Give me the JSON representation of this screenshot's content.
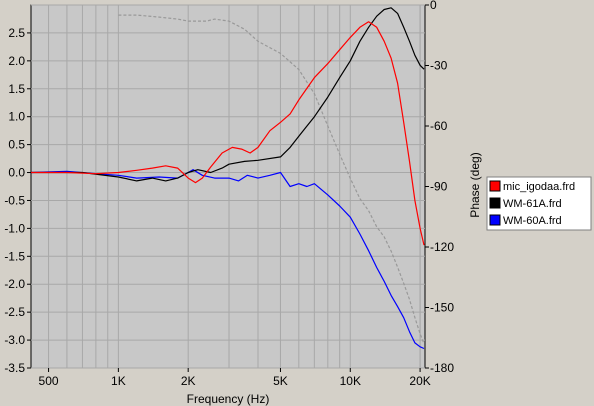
{
  "chart_data": {
    "type": "line",
    "xlabel": "Frequency (Hz)",
    "ylabel_right": "Phase (deg)",
    "xscale": "log",
    "xlim": [
      420,
      21000
    ],
    "ylim_left": [
      -3.5,
      3.0
    ],
    "ylim_right": [
      -180,
      0
    ],
    "grid": true,
    "legend_position": "right",
    "x_tick_labels": [
      {
        "value": 500,
        "label": "500"
      },
      {
        "value": 1000,
        "label": "1K"
      },
      {
        "value": 2000,
        "label": "2K"
      },
      {
        "value": 5000,
        "label": "5K"
      },
      {
        "value": 10000,
        "label": "10K"
      },
      {
        "value": 20000,
        "label": "20K"
      }
    ],
    "y_left_ticks": [
      "2.5",
      "2.0",
      "1.5",
      "1.0",
      "0.5",
      "0.0",
      "-0.5",
      "-1.0",
      "-1.5",
      "-2.0",
      "-2.5",
      "-3.0",
      "-3.5"
    ],
    "y_right_ticks": [
      "0",
      "-30",
      "-60",
      "-90",
      "-120",
      "-150",
      "-180"
    ],
    "series": [
      {
        "name": "mic_igodaa.frd",
        "color": "#ff0000",
        "axis": "left",
        "points": [
          [
            420,
            0.0
          ],
          [
            600,
            0.0
          ],
          [
            800,
            -0.02
          ],
          [
            1000,
            0.0
          ],
          [
            1200,
            0.04
          ],
          [
            1400,
            0.08
          ],
          [
            1600,
            0.12
          ],
          [
            1800,
            0.08
          ],
          [
            2000,
            -0.1
          ],
          [
            2150,
            -0.18
          ],
          [
            2300,
            -0.1
          ],
          [
            2500,
            0.1
          ],
          [
            2800,
            0.35
          ],
          [
            3100,
            0.45
          ],
          [
            3400,
            0.42
          ],
          [
            3700,
            0.35
          ],
          [
            4000,
            0.45
          ],
          [
            4500,
            0.75
          ],
          [
            5000,
            0.9
          ],
          [
            5500,
            1.05
          ],
          [
            6000,
            1.3
          ],
          [
            7000,
            1.7
          ],
          [
            8000,
            1.95
          ],
          [
            9000,
            2.2
          ],
          [
            10000,
            2.42
          ],
          [
            11000,
            2.6
          ],
          [
            12000,
            2.7
          ],
          [
            13000,
            2.6
          ],
          [
            14000,
            2.35
          ],
          [
            15000,
            2.05
          ],
          [
            16000,
            1.6
          ],
          [
            17000,
            0.9
          ],
          [
            18000,
            0.2
          ],
          [
            19000,
            -0.5
          ],
          [
            20000,
            -1.0
          ],
          [
            20800,
            -1.3
          ]
        ]
      },
      {
        "name": "WM-61A.frd",
        "color": "#000000",
        "axis": "left",
        "points": [
          [
            420,
            0.0
          ],
          [
            700,
            0.0
          ],
          [
            1000,
            -0.08
          ],
          [
            1200,
            -0.15
          ],
          [
            1400,
            -0.1
          ],
          [
            1600,
            -0.15
          ],
          [
            1800,
            -0.1
          ],
          [
            2000,
            0.0
          ],
          [
            2200,
            0.05
          ],
          [
            2500,
            0.0
          ],
          [
            2800,
            0.08
          ],
          [
            3000,
            0.15
          ],
          [
            3500,
            0.2
          ],
          [
            4000,
            0.22
          ],
          [
            5000,
            0.28
          ],
          [
            5500,
            0.45
          ],
          [
            6000,
            0.65
          ],
          [
            7000,
            1.0
          ],
          [
            8000,
            1.35
          ],
          [
            9000,
            1.7
          ],
          [
            10000,
            2.0
          ],
          [
            11000,
            2.35
          ],
          [
            12000,
            2.6
          ],
          [
            13000,
            2.8
          ],
          [
            14000,
            2.92
          ],
          [
            15000,
            2.95
          ],
          [
            16000,
            2.85
          ],
          [
            17000,
            2.6
          ],
          [
            18000,
            2.35
          ],
          [
            19000,
            2.1
          ],
          [
            20000,
            1.92
          ],
          [
            20800,
            1.85
          ]
        ]
      },
      {
        "name": "WM-60A.frd",
        "color": "#0000ff",
        "axis": "left",
        "points": [
          [
            420,
            0.0
          ],
          [
            600,
            0.02
          ],
          [
            800,
            -0.02
          ],
          [
            1000,
            -0.05
          ],
          [
            1200,
            -0.1
          ],
          [
            1500,
            -0.08
          ],
          [
            1800,
            -0.1
          ],
          [
            2000,
            0.0
          ],
          [
            2100,
            0.05
          ],
          [
            2300,
            -0.05
          ],
          [
            2600,
            -0.1
          ],
          [
            3000,
            -0.1
          ],
          [
            3300,
            -0.15
          ],
          [
            3600,
            -0.05
          ],
          [
            4000,
            -0.1
          ],
          [
            4500,
            -0.05
          ],
          [
            5000,
            0.0
          ],
          [
            5500,
            -0.25
          ],
          [
            6000,
            -0.2
          ],
          [
            6500,
            -0.25
          ],
          [
            7000,
            -0.2
          ],
          [
            8000,
            -0.4
          ],
          [
            9000,
            -0.6
          ],
          [
            10000,
            -0.8
          ],
          [
            11000,
            -1.1
          ],
          [
            12000,
            -1.4
          ],
          [
            13000,
            -1.7
          ],
          [
            14000,
            -1.95
          ],
          [
            15000,
            -2.2
          ],
          [
            16000,
            -2.4
          ],
          [
            17000,
            -2.6
          ],
          [
            18000,
            -2.85
          ],
          [
            19000,
            -3.05
          ],
          [
            20000,
            -3.12
          ],
          [
            20800,
            -3.15
          ]
        ]
      },
      {
        "name": "phase",
        "color": "#999999",
        "axis": "right",
        "dashed": true,
        "points": [
          [
            1000,
            -5
          ],
          [
            1200,
            -5
          ],
          [
            1500,
            -6
          ],
          [
            1800,
            -7
          ],
          [
            2000,
            -8
          ],
          [
            2400,
            -8
          ],
          [
            2600,
            -7
          ],
          [
            3000,
            -8
          ],
          [
            3500,
            -12
          ],
          [
            4000,
            -18
          ],
          [
            5000,
            -24
          ],
          [
            6000,
            -32
          ],
          [
            7000,
            -44
          ],
          [
            8000,
            -60
          ],
          [
            9000,
            -74
          ],
          [
            10000,
            -86
          ],
          [
            11000,
            -96
          ],
          [
            12000,
            -102
          ],
          [
            13000,
            -110
          ],
          [
            14000,
            -115
          ],
          [
            15000,
            -122
          ],
          [
            16000,
            -130
          ],
          [
            17000,
            -138
          ],
          [
            18000,
            -146
          ],
          [
            19000,
            -155
          ],
          [
            20000,
            -163
          ],
          [
            20800,
            -168
          ]
        ]
      }
    ]
  }
}
